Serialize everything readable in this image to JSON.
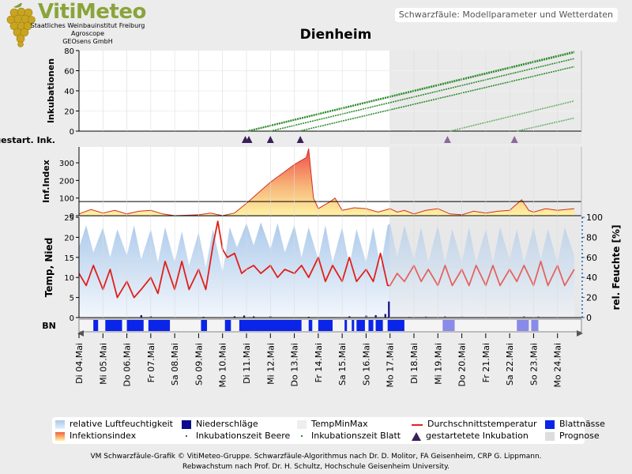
{
  "header": {
    "logo_text": "VitiMeteo",
    "logo_lines": [
      "Staatliches Weinbauinstitut Freiburg",
      "Agroscope",
      "GEOsens GmbH"
    ],
    "subtitle": "Schwarzfäule: Modellparameter und Wetterdaten"
  },
  "chart_data": {
    "type": "line",
    "title": "Dienheim",
    "dates": [
      "Di 04.Mai",
      "Mi 05.Mai",
      "Do 06.Mai",
      "Fr 07.Mai",
      "Sa 08.Mai",
      "So 09.Mai",
      "Mo 10.Mai",
      "Di 11.Mai",
      "Mi 12.Mai",
      "Do 13.Mai",
      "Fr 14.Mai",
      "Sa 15.Mai",
      "So 16.Mai",
      "Mo 17.Mai",
      "Di 18.Mai",
      "Mi 19.Mai",
      "Do 20.Mai",
      "Fr 21.Mai",
      "Sa 22.Mai",
      "So 23.Mai",
      "Mo 24.Mai"
    ],
    "prognose_from": "Mo 17.Mai",
    "incubation": {
      "ylabel": "Inkubationen",
      "ylim": [
        0,
        80
      ],
      "yticks": [
        0,
        20,
        40,
        60,
        80
      ],
      "series": [
        {
          "start_day": 7.0,
          "end_value": 79
        },
        {
          "start_day": 7.1,
          "end_value": 78
        },
        {
          "start_day": 8.0,
          "end_value": 72
        },
        {
          "start_day": 9.2,
          "end_value": 64
        },
        {
          "start_day": 15.5,
          "end_value": 30
        },
        {
          "start_day": 18.3,
          "end_value": 13
        }
      ]
    },
    "started_incubations": {
      "label": "gestart. Ink.",
      "days": [
        6.95,
        7.1,
        8.0,
        9.25,
        15.4,
        18.2
      ]
    },
    "infection_index": {
      "ylabel": "Inf.Index",
      "yticks": [
        0,
        100,
        200,
        300
      ],
      "ylim": [
        0,
        390
      ],
      "threshold": 80,
      "points": [
        [
          0,
          10
        ],
        [
          0.5,
          35
        ],
        [
          1,
          15
        ],
        [
          1.5,
          30
        ],
        [
          2,
          10
        ],
        [
          2.5,
          25
        ],
        [
          3,
          30
        ],
        [
          3.5,
          10
        ],
        [
          4,
          0
        ],
        [
          5,
          5
        ],
        [
          5.5,
          15
        ],
        [
          6,
          0
        ],
        [
          6.5,
          15
        ],
        [
          7,
          70
        ],
        [
          7.5,
          130
        ],
        [
          8,
          190
        ],
        [
          8.5,
          240
        ],
        [
          9,
          290
        ],
        [
          9.5,
          330
        ],
        [
          9.6,
          380
        ],
        [
          9.8,
          100
        ],
        [
          10,
          40
        ],
        [
          10.5,
          80
        ],
        [
          10.7,
          100
        ],
        [
          11,
          30
        ],
        [
          11.5,
          45
        ],
        [
          12,
          40
        ],
        [
          12.5,
          20
        ],
        [
          13,
          40
        ],
        [
          13.3,
          20
        ],
        [
          13.6,
          30
        ],
        [
          14,
          10
        ],
        [
          14.5,
          30
        ],
        [
          15,
          40
        ],
        [
          15.5,
          10
        ],
        [
          16,
          5
        ],
        [
          16.5,
          25
        ],
        [
          17,
          15
        ],
        [
          17.5,
          25
        ],
        [
          18,
          30
        ],
        [
          18.5,
          90
        ],
        [
          18.8,
          30
        ],
        [
          19,
          20
        ],
        [
          19.5,
          40
        ],
        [
          20,
          30
        ],
        [
          20.7,
          40
        ]
      ]
    },
    "temperature": {
      "ylabel": "Temp, Nied",
      "ylim": [
        0,
        25
      ],
      "yticks": [
        0,
        5,
        10,
        15,
        20,
        25
      ],
      "y2label": "rel. Feuchte [%]",
      "y2lim": [
        0,
        100
      ],
      "y2ticks": [
        0,
        20,
        40,
        60,
        80,
        100
      ],
      "mean_temp": [
        [
          0,
          11
        ],
        [
          0.3,
          8
        ],
        [
          0.6,
          13
        ],
        [
          1,
          7
        ],
        [
          1.3,
          12
        ],
        [
          1.6,
          5
        ],
        [
          2,
          9
        ],
        [
          2.3,
          5
        ],
        [
          2.6,
          7
        ],
        [
          3,
          10
        ],
        [
          3.3,
          6
        ],
        [
          3.6,
          14
        ],
        [
          4,
          7
        ],
        [
          4.3,
          14
        ],
        [
          4.6,
          7
        ],
        [
          5,
          12
        ],
        [
          5.3,
          7
        ],
        [
          5.6,
          18
        ],
        [
          5.8,
          24
        ],
        [
          6,
          17
        ],
        [
          6.2,
          15
        ],
        [
          6.5,
          16
        ],
        [
          6.8,
          11
        ],
        [
          7,
          12
        ],
        [
          7.3,
          13
        ],
        [
          7.6,
          11
        ],
        [
          8,
          13
        ],
        [
          8.3,
          10
        ],
        [
          8.6,
          12
        ],
        [
          9,
          11
        ],
        [
          9.3,
          13
        ],
        [
          9.6,
          10
        ],
        [
          10,
          15
        ],
        [
          10.3,
          9
        ],
        [
          10.6,
          13
        ],
        [
          11,
          9
        ],
        [
          11.3,
          15
        ],
        [
          11.6,
          9
        ],
        [
          12,
          12
        ],
        [
          12.3,
          9
        ],
        [
          12.6,
          16
        ],
        [
          12.9,
          8
        ],
        [
          13,
          8
        ],
        [
          13.3,
          11
        ],
        [
          13.6,
          9
        ],
        [
          14,
          13
        ],
        [
          14.3,
          9
        ],
        [
          14.6,
          12
        ],
        [
          15,
          8
        ],
        [
          15.3,
          13
        ],
        [
          15.6,
          8
        ],
        [
          16,
          12
        ],
        [
          16.3,
          8
        ],
        [
          16.6,
          13
        ],
        [
          17,
          8
        ],
        [
          17.3,
          13
        ],
        [
          17.6,
          8
        ],
        [
          18,
          12
        ],
        [
          18.3,
          9
        ],
        [
          18.6,
          13
        ],
        [
          19,
          8
        ],
        [
          19.3,
          14
        ],
        [
          19.6,
          8
        ],
        [
          20,
          13
        ],
        [
          20.3,
          8
        ],
        [
          20.7,
          12
        ]
      ],
      "humidity": [
        [
          0,
          70
        ],
        [
          0.3,
          92
        ],
        [
          0.6,
          65
        ],
        [
          1,
          90
        ],
        [
          1.3,
          60
        ],
        [
          1.6,
          88
        ],
        [
          2,
          62
        ],
        [
          2.3,
          92
        ],
        [
          2.6,
          58
        ],
        [
          3,
          88
        ],
        [
          3.3,
          55
        ],
        [
          3.6,
          90
        ],
        [
          4,
          55
        ],
        [
          4.3,
          86
        ],
        [
          4.6,
          52
        ],
        [
          5,
          85
        ],
        [
          5.3,
          50
        ],
        [
          5.6,
          88
        ],
        [
          6,
          45
        ],
        [
          6.3,
          90
        ],
        [
          6.6,
          70
        ],
        [
          7,
          94
        ],
        [
          7.3,
          72
        ],
        [
          7.6,
          95
        ],
        [
          8,
          68
        ],
        [
          8.3,
          94
        ],
        [
          8.6,
          65
        ],
        [
          9,
          92
        ],
        [
          9.3,
          60
        ],
        [
          9.6,
          90
        ],
        [
          10,
          58
        ],
        [
          10.3,
          92
        ],
        [
          10.6,
          55
        ],
        [
          11,
          90
        ],
        [
          11.3,
          52
        ],
        [
          11.6,
          88
        ],
        [
          12,
          55
        ],
        [
          12.3,
          90
        ],
        [
          12.6,
          50
        ],
        [
          12.9,
          92
        ],
        [
          13,
          94
        ],
        [
          13.3,
          60
        ],
        [
          13.6,
          92
        ],
        [
          14,
          58
        ],
        [
          14.3,
          90
        ],
        [
          14.6,
          55
        ],
        [
          15,
          92
        ],
        [
          15.3,
          55
        ],
        [
          15.6,
          88
        ],
        [
          16,
          55
        ],
        [
          16.3,
          90
        ],
        [
          16.6,
          55
        ],
        [
          17,
          88
        ],
        [
          17.3,
          55
        ],
        [
          17.6,
          90
        ],
        [
          18,
          58
        ],
        [
          18.3,
          88
        ],
        [
          18.6,
          55
        ],
        [
          19,
          90
        ],
        [
          19.3,
          58
        ],
        [
          19.6,
          88
        ],
        [
          20,
          55
        ],
        [
          20.3,
          90
        ],
        [
          20.7,
          62
        ]
      ],
      "precipitation": [
        [
          2.6,
          0.6
        ],
        [
          3.0,
          0.3
        ],
        [
          5.2,
          0.2
        ],
        [
          6.5,
          0.3
        ],
        [
          6.9,
          0.5
        ],
        [
          7.3,
          0.3
        ],
        [
          8.0,
          0.3
        ],
        [
          9.6,
          0.2
        ],
        [
          11.3,
          0.3
        ],
        [
          12.0,
          0.5
        ],
        [
          12.4,
          0.6
        ],
        [
          12.8,
          0.9
        ],
        [
          12.95,
          4.0
        ],
        [
          13.8,
          0.2
        ],
        [
          14.5,
          0.3
        ],
        [
          15.3,
          0.4
        ],
        [
          16.0,
          0.3
        ],
        [
          18.6,
          0.4
        ],
        [
          19.2,
          0.3
        ]
      ]
    },
    "leaf_wetness": {
      "label": "BN",
      "intervals": [
        [
          0.6,
          0.8
        ],
        [
          1.1,
          1.8
        ],
        [
          2.0,
          2.7
        ],
        [
          2.9,
          3.8
        ],
        [
          5.1,
          5.35
        ],
        [
          6.1,
          6.35
        ],
        [
          6.7,
          9.3
        ],
        [
          9.6,
          9.75
        ],
        [
          10.0,
          10.6
        ],
        [
          11.1,
          11.2
        ],
        [
          11.4,
          11.5
        ],
        [
          11.6,
          11.95
        ],
        [
          12.1,
          12.3
        ],
        [
          12.4,
          12.7
        ],
        [
          12.9,
          13.6
        ],
        [
          15.2,
          15.7
        ],
        [
          18.3,
          18.8
        ],
        [
          18.9,
          19.2
        ]
      ]
    },
    "legend": {
      "humidity": "relative Luftfeuchtigkeit",
      "precip": "Niederschläge",
      "tempminmax": "TempMinMax",
      "meantemp": "Durchschnittstemperatur",
      "wetness": "Blattnässe",
      "infindex": "Infektionsindex",
      "inc_berry": "Inkubationszeit Beere",
      "inc_leaf": "Inkubationszeit Blatt",
      "started_inc": "gestartetete Inkubation",
      "prognose": "Prognose"
    },
    "colors": {
      "incubation": "#2e8b2e",
      "mean_temp": "#e0201a",
      "humidity": "#a9c8ea",
      "precip": "#0a0a8c",
      "wetness": "#0a24e8",
      "infindex_top": "#f04040",
      "infindex_bottom": "#fff3a0",
      "triangle": "#3a1f5a",
      "prognose_bg": "#e6e6e6"
    }
  },
  "footer": {
    "line1": "VM Schwarzfäule-Grafik © VitiMeteo-Gruppe. Schwarzfäule-Algorithmus nach Dr. D. Molitor, FA Geisenheim, CRP G. Lippmann.",
    "line2": "Rebwachstum nach Prof. Dr. H. Schultz, Hochschule Geisenheim University."
  }
}
